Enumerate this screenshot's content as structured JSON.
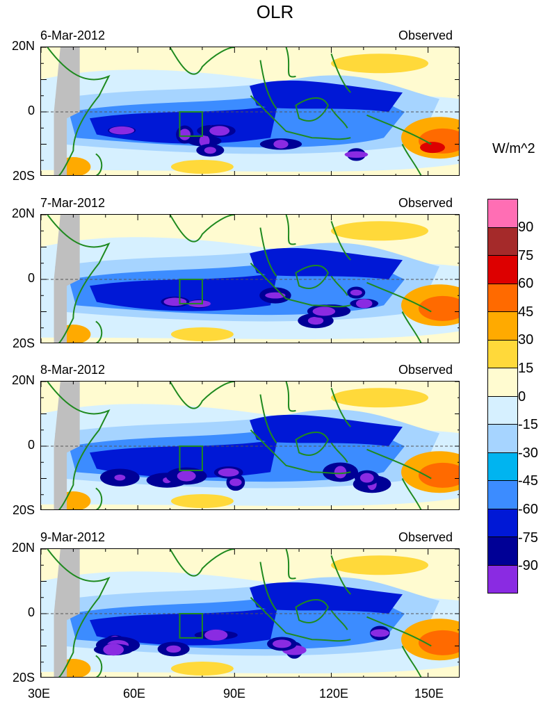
{
  "title": "OLR",
  "units": "W/m^2",
  "panels": [
    {
      "date": "6-Mar-2012",
      "source": "Observed"
    },
    {
      "date": "7-Mar-2012",
      "source": "Observed"
    },
    {
      "date": "8-Mar-2012",
      "source": "Observed"
    },
    {
      "date": "9-Mar-2012",
      "source": "Observed"
    }
  ],
  "lat_ticks": [
    "20N",
    "0",
    "20S"
  ],
  "lon_ticks": [
    "30E",
    "60E",
    "90E",
    "120E",
    "150E"
  ],
  "colorbar": {
    "labels": [
      "90",
      "75",
      "60",
      "45",
      "30",
      "15",
      "0",
      "-15",
      "-30",
      "-45",
      "-60",
      "-75",
      "-90"
    ],
    "colors": [
      "#ff6eb4",
      "#a52a2a",
      "#dd0000",
      "#ff6a00",
      "#ffaa00",
      "#ffd93a",
      "#fffbd0",
      "#d6f0ff",
      "#a6d4ff",
      "#00b4f0",
      "#3c8cff",
      "#0018d6",
      "#000096",
      "#8a2be2"
    ]
  },
  "chart_data": {
    "type": "heatmap",
    "variable": "OLR anomaly",
    "x_range_deg": [
      30,
      160
    ],
    "y_range_deg": [
      -20,
      20
    ],
    "levels": [
      -90,
      -75,
      -60,
      -45,
      -30,
      -15,
      0,
      15,
      30,
      45,
      60,
      75,
      90
    ]
  }
}
